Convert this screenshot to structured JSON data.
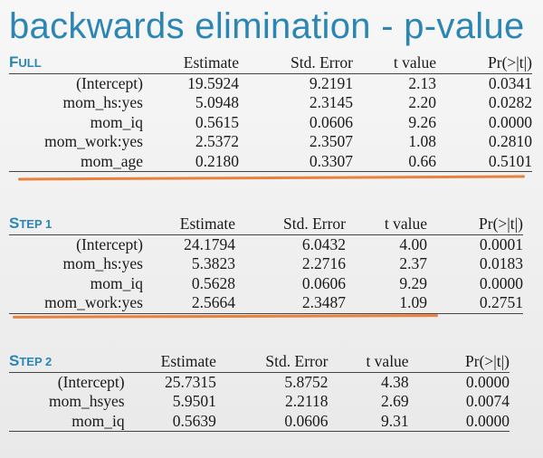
{
  "slide": {
    "title": "backwards elimination - p-value"
  },
  "columns": [
    "Estimate",
    "Std. Error",
    "t value",
    "Pr(>|t|)"
  ],
  "tables": [
    {
      "step_first": "F",
      "step_rest": "ULL",
      "rows": [
        {
          "label": "(Intercept)",
          "estimate": "19.5924",
          "std_error": "9.2191",
          "t_value": "2.13",
          "p": "0.0341"
        },
        {
          "label": "mom_hs:yes",
          "estimate": "5.0948",
          "std_error": "2.3145",
          "t_value": "2.20",
          "p": "0.0282"
        },
        {
          "label": "mom_iq",
          "estimate": "0.5615",
          "std_error": "0.0606",
          "t_value": "9.26",
          "p": "0.0000"
        },
        {
          "label": "mom_work:yes",
          "estimate": "2.5372",
          "std_error": "2.3507",
          "t_value": "1.08",
          "p": "0.2810"
        },
        {
          "label": "mom_age",
          "estimate": "0.2180",
          "std_error": "0.3307",
          "t_value": "0.66",
          "p": "0.5101"
        }
      ]
    },
    {
      "step_first": "S",
      "step_rest": "TEP 1",
      "rows": [
        {
          "label": "(Intercept)",
          "estimate": "24.1794",
          "std_error": "6.0432",
          "t_value": "4.00",
          "p": "0.0001"
        },
        {
          "label": "mom_hs:yes",
          "estimate": "5.3823",
          "std_error": "2.2716",
          "t_value": "2.37",
          "p": "0.0183"
        },
        {
          "label": "mom_iq",
          "estimate": "0.5628",
          "std_error": "0.0606",
          "t_value": "9.29",
          "p": "0.0000"
        },
        {
          "label": "mom_work:yes",
          "estimate": "2.5664",
          "std_error": "2.3487",
          "t_value": "1.09",
          "p": "0.2751"
        }
      ]
    },
    {
      "step_first": "S",
      "step_rest": "TEP 2",
      "rows": [
        {
          "label": "(Intercept)",
          "estimate": "25.7315",
          "std_error": "5.8752",
          "t_value": "4.38",
          "p": "0.0000"
        },
        {
          "label": "mom_hsyes",
          "estimate": "5.9501",
          "std_error": "2.2118",
          "t_value": "2.69",
          "p": "0.0074"
        },
        {
          "label": "mom_iq",
          "estimate": "0.5639",
          "std_error": "0.0606",
          "t_value": "9.31",
          "p": "0.0000"
        }
      ]
    }
  ],
  "colors": {
    "accent": "#2b86b3",
    "strike": "#e8742a"
  }
}
